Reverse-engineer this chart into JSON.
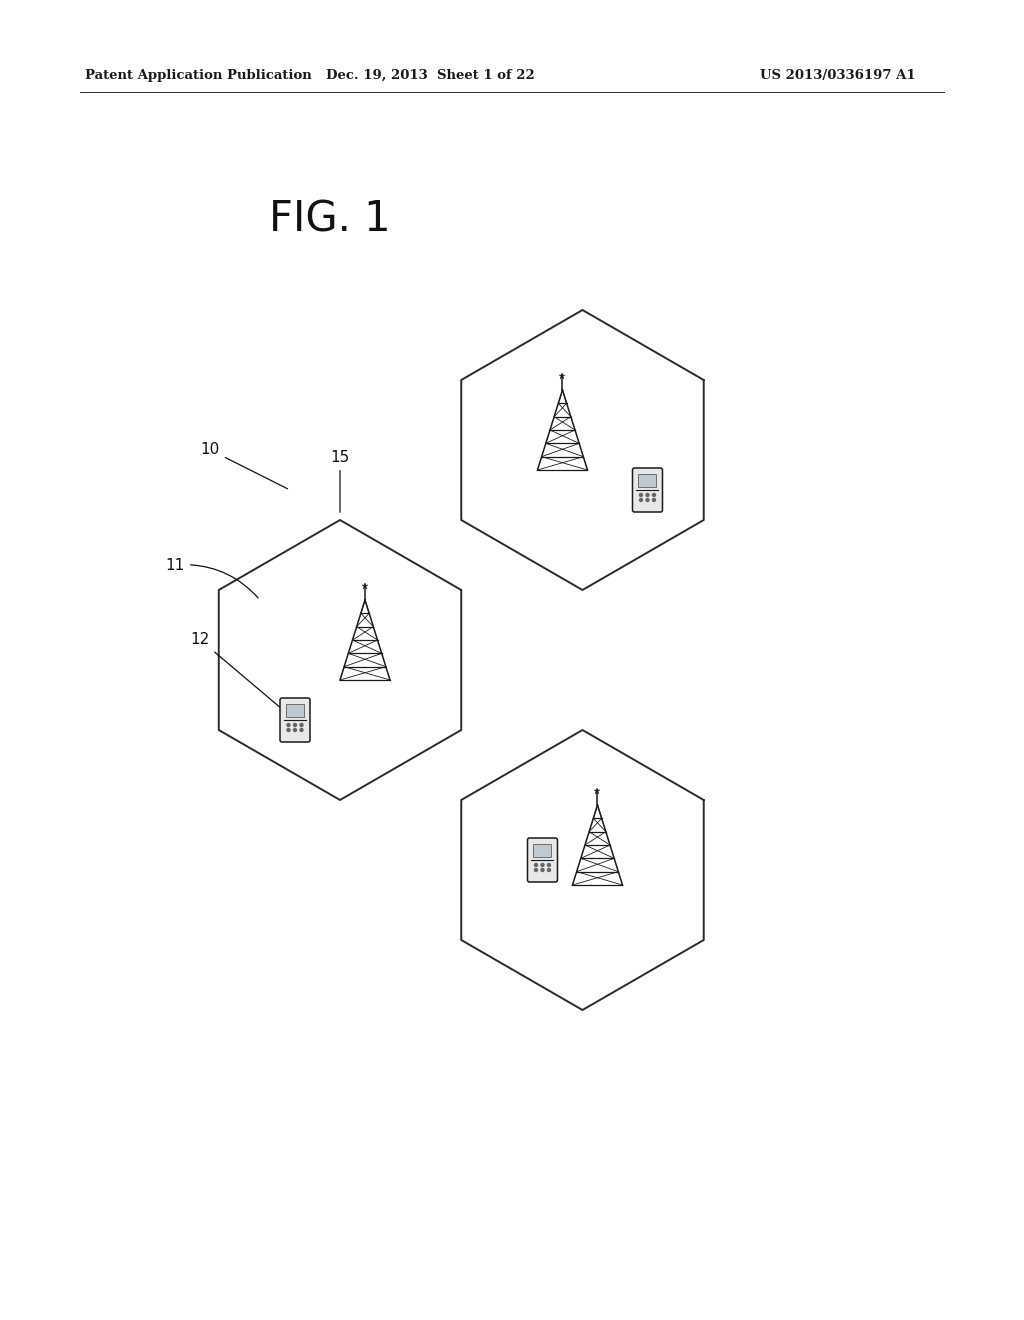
{
  "header_left": "Patent Application Publication",
  "header_mid": "Dec. 19, 2013  Sheet 1 of 22",
  "header_right": "US 2013/0336197 A1",
  "fig_label": "FIG. 1",
  "background_color": "#ffffff",
  "line_color": "#2a2a2a",
  "text_color": "#1a1a1a",
  "header_fontsize": 9.5,
  "fig_label_fontsize": 30,
  "label_fontsize": 11,
  "hex_linewidth": 1.4
}
